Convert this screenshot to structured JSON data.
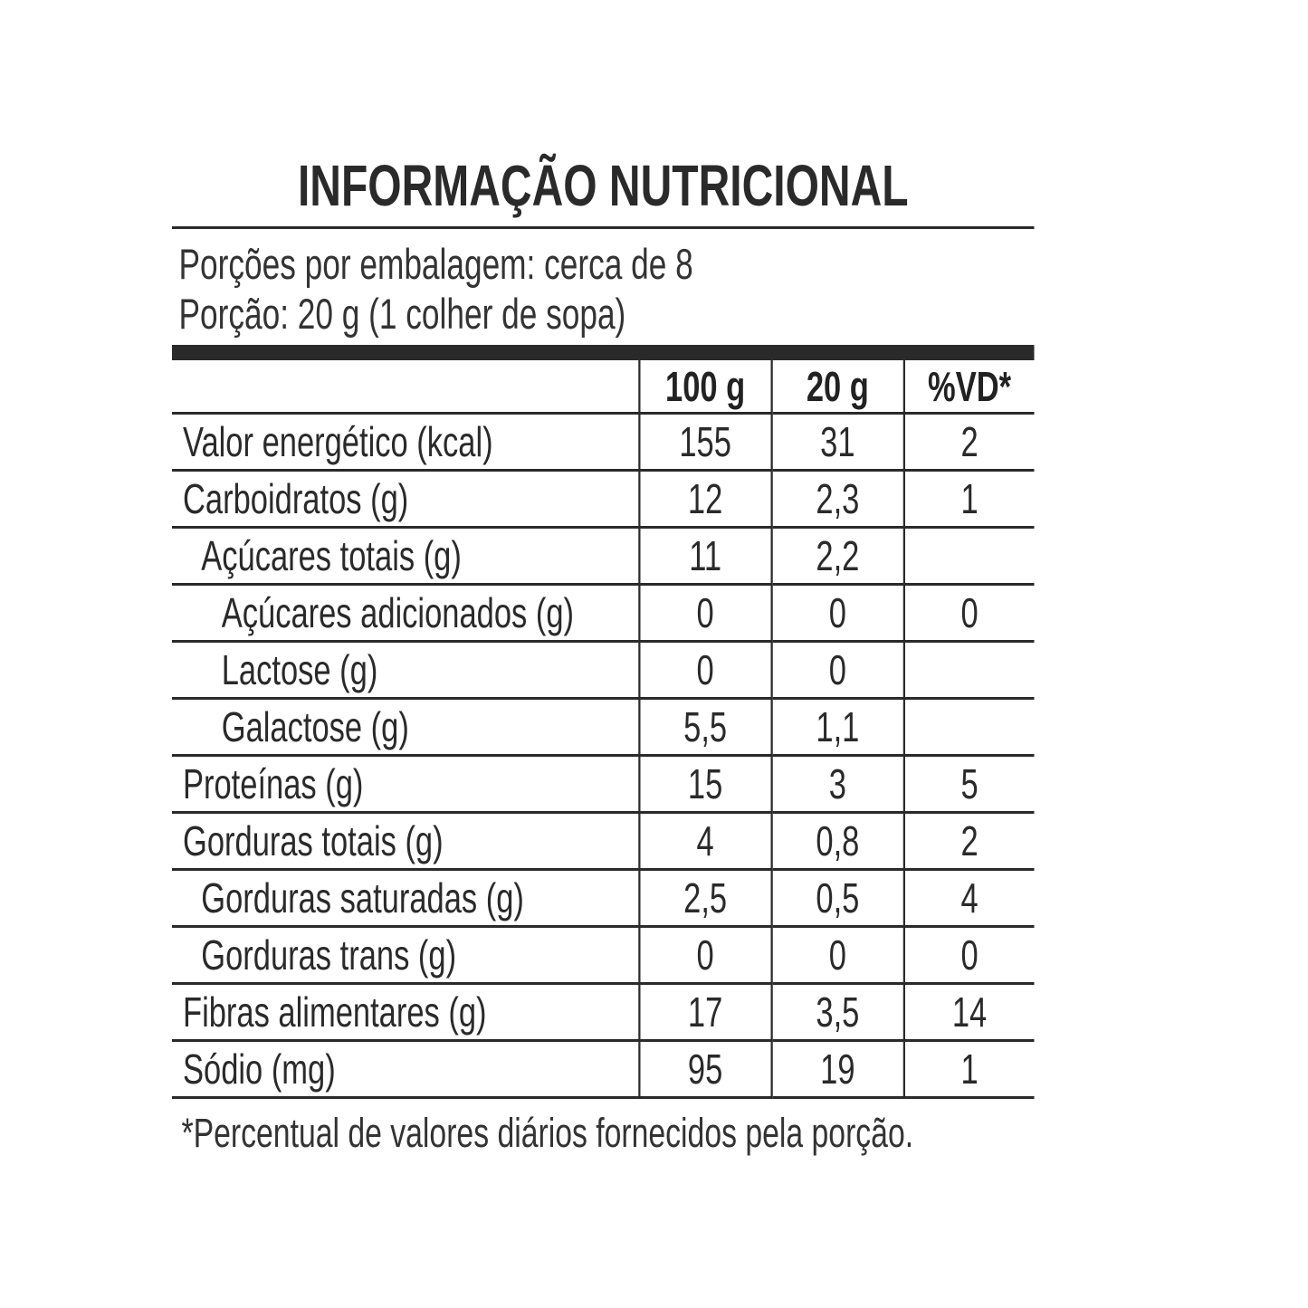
{
  "title": "INFORMAÇÃO NUTRICIONAL",
  "servings_per_package": "Porções por embalagem: cerca de 8",
  "serving_size": "Porção: 20 g (1 colher de sopa)",
  "columns": [
    "",
    "100 g",
    "20 g",
    "%VD*"
  ],
  "rows": [
    {
      "label": "Valor energético (kcal)",
      "level": 0,
      "v100": "155",
      "v20": "31",
      "vd": "2"
    },
    {
      "label": "Carboidratos (g)",
      "level": 0,
      "v100": "12",
      "v20": "2,3",
      "vd": "1"
    },
    {
      "label": "Açúcares totais (g)",
      "level": 1,
      "v100": "11",
      "v20": "2,2",
      "vd": ""
    },
    {
      "label": "Açúcares adicionados (g)",
      "level": 2,
      "v100": "0",
      "v20": "0",
      "vd": "0"
    },
    {
      "label": "Lactose (g)",
      "level": 2,
      "v100": "0",
      "v20": "0",
      "vd": ""
    },
    {
      "label": "Galactose (g)",
      "level": 2,
      "v100": "5,5",
      "v20": "1,1",
      "vd": ""
    },
    {
      "label": "Proteínas (g)",
      "level": 0,
      "v100": "15",
      "v20": "3",
      "vd": "5"
    },
    {
      "label": "Gorduras totais (g)",
      "level": 0,
      "v100": "4",
      "v20": "0,8",
      "vd": "2"
    },
    {
      "label": "Gorduras saturadas (g)",
      "level": 1,
      "v100": "2,5",
      "v20": "0,5",
      "vd": "4"
    },
    {
      "label": "Gorduras trans (g)",
      "level": 1,
      "v100": "0",
      "v20": "0",
      "vd": "0"
    },
    {
      "label": "Fibras alimentares (g)",
      "level": 0,
      "v100": "17",
      "v20": "3,5",
      "vd": "14"
    },
    {
      "label": "Sódio (mg)",
      "level": 0,
      "v100": "95",
      "v20": "19",
      "vd": "1"
    }
  ],
  "footnote": "*Percentual de valores diários fornecidos pela porção."
}
